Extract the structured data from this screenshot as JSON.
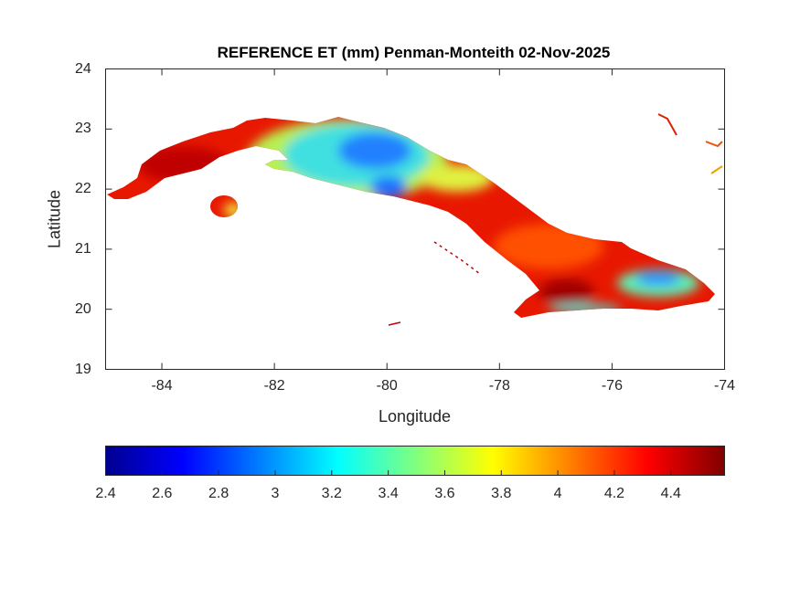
{
  "chart_data": {
    "type": "heatmap",
    "title": "REFERENCE ET (mm) Penman-Monteith 02-Nov-2025",
    "xlabel": "Longitude",
    "ylabel": "Latitude",
    "xlim": [
      -85,
      -74
    ],
    "ylim": [
      19,
      24
    ],
    "xticks": [
      "-84",
      "-82",
      "-80",
      "-78",
      "-76",
      "-74"
    ],
    "yticks": [
      "24",
      "23",
      "22",
      "21",
      "20",
      "19"
    ],
    "colormap": "jet",
    "clim": [
      2.4,
      4.59
    ],
    "colorbar_ticks": [
      "2.4",
      "2.6",
      "2.8",
      "3",
      "3.2",
      "3.4",
      "3.6",
      "3.8",
      "4",
      "4.2",
      "4.4"
    ],
    "colorbar_location": "bottom",
    "regions": [
      {
        "name": "western Cuba",
        "value_range": [
          4.2,
          4.5
        ]
      },
      {
        "name": "central-west Cuba",
        "value_range": [
          2.8,
          3.6
        ]
      },
      {
        "name": "central-east Cuba",
        "value_range": [
          4.0,
          4.5
        ]
      },
      {
        "name": "eastern mountains",
        "value_range": [
          2.9,
          3.5
        ]
      }
    ]
  }
}
